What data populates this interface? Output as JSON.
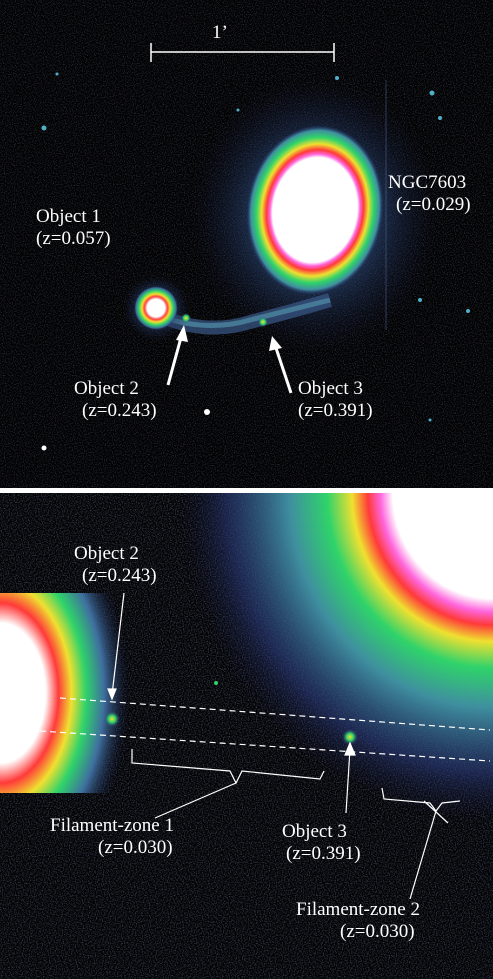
{
  "colors": {
    "background": "#000000",
    "text": "#ffffff",
    "halo_outer": "#2a2f6a",
    "halo_mid": "#3f7f8f",
    "ring_green": "#2fd36a",
    "ring_yellow": "#f0e030",
    "ring_red": "#ff3a3a",
    "ring_magenta": "#ff66dd",
    "core": "#ffffff"
  },
  "top_panel": {
    "scale_bar_label": "1’",
    "ngc": {
      "name": "NGC7603",
      "redshift": "(z=0.029)"
    },
    "object1": {
      "name": "Object 1",
      "redshift": "(z=0.057)"
    },
    "object2": {
      "name": "Object 2",
      "redshift": "(z=0.243)"
    },
    "object3": {
      "name": "Object 3",
      "redshift": "(z=0.391)"
    }
  },
  "bottom_panel": {
    "object2": {
      "name": "Object 2",
      "redshift": "(z=0.243)"
    },
    "object3": {
      "name": "Object 3",
      "redshift": "(z=0.391)"
    },
    "filament1": {
      "name": "Filament-zone 1",
      "redshift": "(z=0.030)"
    },
    "filament2": {
      "name": "Filament-zone 2",
      "redshift": "(z=0.030)"
    }
  }
}
